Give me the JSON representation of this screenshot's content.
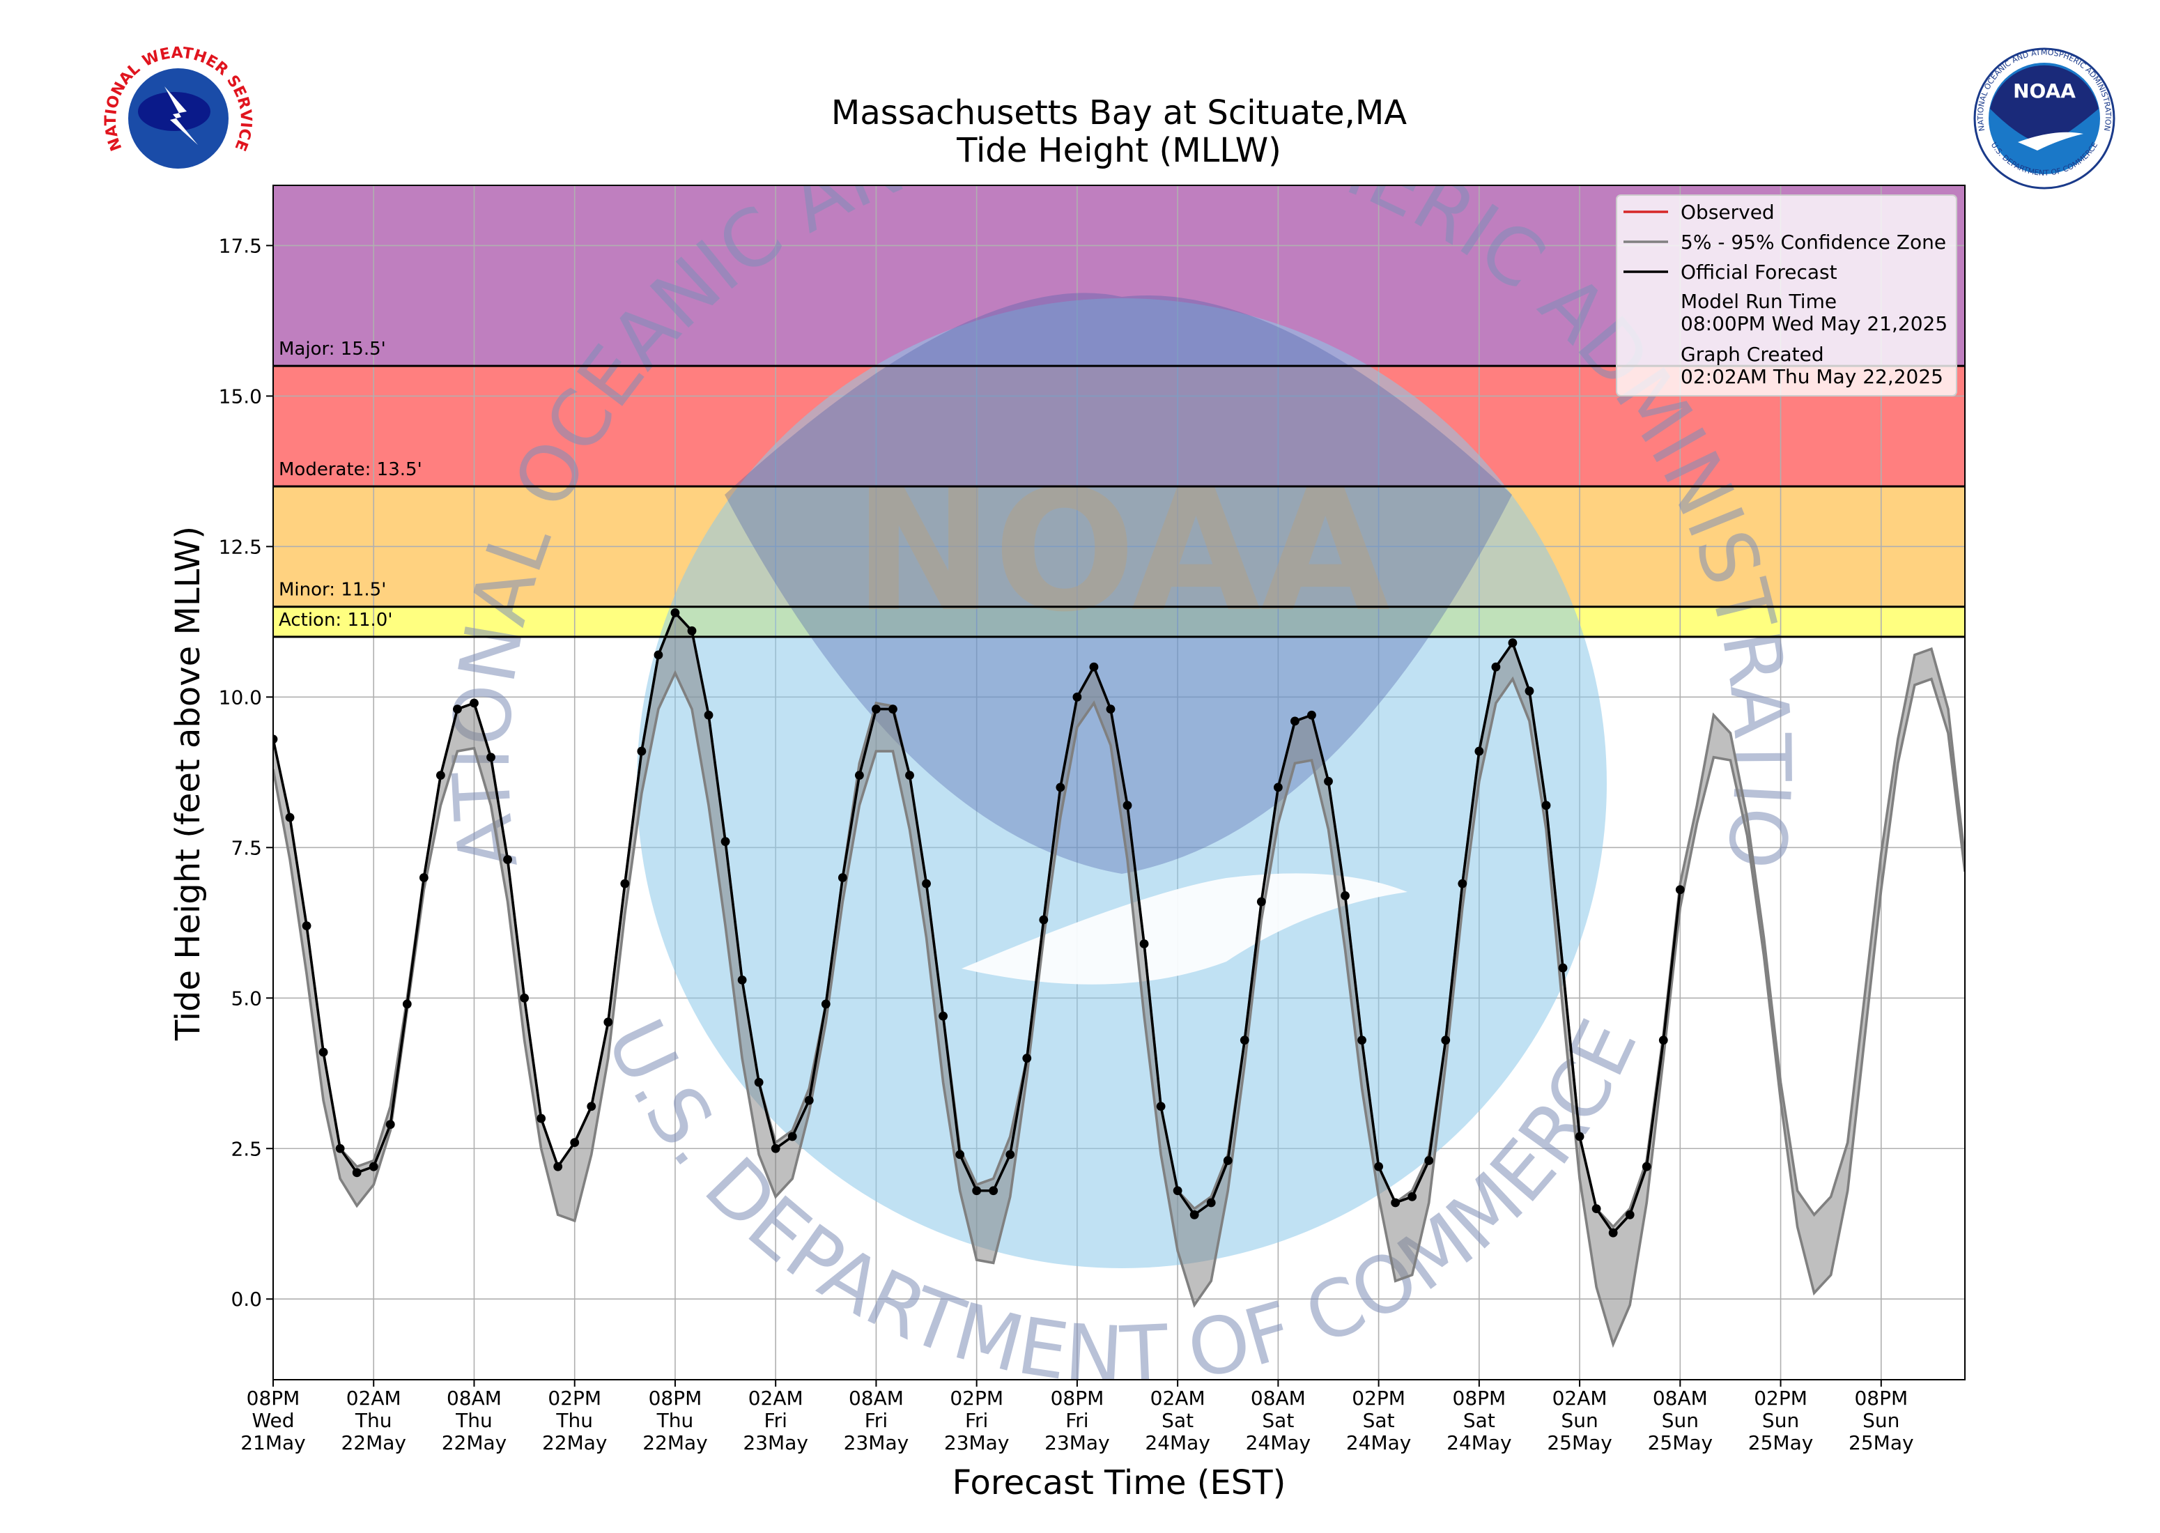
{
  "chart_data": {
    "type": "tide",
    "title": "Massachusetts Bay at Scituate,MA",
    "subtitle": "Tide Height (MLLW)",
    "x_label": "Forecast Time (EST)",
    "y_label": "Tide Height (feet above MLLW)",
    "x": [
      "2025-05-21T20:00",
      "2025-05-21T21:00",
      "2025-05-21T22:00",
      "2025-05-21T23:00",
      "2025-05-22T00:00",
      "2025-05-22T01:00",
      "2025-05-22T02:00",
      "2025-05-22T03:00",
      "2025-05-22T04:00",
      "2025-05-22T05:00",
      "2025-05-22T06:00",
      "2025-05-22T07:00",
      "2025-05-22T08:00",
      "2025-05-22T09:00",
      "2025-05-22T10:00",
      "2025-05-22T11:00",
      "2025-05-22T12:00",
      "2025-05-22T13:00",
      "2025-05-22T14:00",
      "2025-05-22T15:00",
      "2025-05-22T16:00",
      "2025-05-22T17:00",
      "2025-05-22T18:00",
      "2025-05-22T19:00",
      "2025-05-22T20:00",
      "2025-05-22T21:00",
      "2025-05-22T22:00",
      "2025-05-22T23:00",
      "2025-05-23T00:00",
      "2025-05-23T01:00",
      "2025-05-23T02:00",
      "2025-05-23T03:00",
      "2025-05-23T04:00",
      "2025-05-23T05:00",
      "2025-05-23T06:00",
      "2025-05-23T07:00",
      "2025-05-23T08:00",
      "2025-05-23T09:00",
      "2025-05-23T10:00",
      "2025-05-23T11:00",
      "2025-05-23T12:00",
      "2025-05-23T13:00",
      "2025-05-23T14:00",
      "2025-05-23T15:00",
      "2025-05-23T16:00",
      "2025-05-23T17:00",
      "2025-05-23T18:00",
      "2025-05-23T19:00",
      "2025-05-23T20:00",
      "2025-05-23T21:00",
      "2025-05-23T22:00",
      "2025-05-23T23:00",
      "2025-05-24T00:00",
      "2025-05-24T01:00",
      "2025-05-24T02:00",
      "2025-05-24T03:00",
      "2025-05-24T04:00",
      "2025-05-24T05:00",
      "2025-05-24T06:00",
      "2025-05-24T07:00",
      "2025-05-24T08:00",
      "2025-05-24T09:00",
      "2025-05-24T10:00",
      "2025-05-24T11:00",
      "2025-05-24T12:00",
      "2025-05-24T13:00",
      "2025-05-24T14:00",
      "2025-05-24T15:00",
      "2025-05-24T16:00",
      "2025-05-24T17:00",
      "2025-05-24T18:00",
      "2025-05-24T19:00",
      "2025-05-24T20:00",
      "2025-05-24T21:00",
      "2025-05-24T22:00",
      "2025-05-24T23:00",
      "2025-05-25T00:00",
      "2025-05-25T01:00",
      "2025-05-25T02:00",
      "2025-05-25T03:00",
      "2025-05-25T04:00",
      "2025-05-25T05:00",
      "2025-05-25T06:00",
      "2025-05-25T07:00",
      "2025-05-25T08:00",
      "2025-05-25T09:00",
      "2025-05-25T10:00",
      "2025-05-25T11:00",
      "2025-05-25T12:00",
      "2025-05-25T13:00",
      "2025-05-25T14:00",
      "2025-05-25T15:00",
      "2025-05-25T16:00",
      "2025-05-25T17:00",
      "2025-05-25T18:00",
      "2025-05-25T19:00",
      "2025-05-25T20:00",
      "2025-05-25T21:00",
      "2025-05-25T22:00",
      "2025-05-25T23:00",
      "2025-05-26T00:00",
      "2025-05-26T01:00"
    ],
    "series": [
      {
        "name": "Observed",
        "color": "#d62728",
        "values": [
          null,
          null,
          null,
          null,
          null,
          null,
          null,
          null,
          null,
          null,
          null,
          null,
          null,
          null,
          null,
          null,
          null,
          null,
          null,
          null,
          null,
          null,
          null,
          null,
          null,
          null,
          null,
          null,
          null,
          null,
          null,
          null,
          null,
          null,
          null,
          null,
          null,
          null,
          null,
          null,
          null,
          null,
          null,
          null,
          null,
          null,
          null,
          null,
          null,
          null,
          null,
          null,
          null,
          null,
          null,
          null,
          null,
          null,
          null,
          null,
          null,
          null,
          null,
          null,
          null,
          null,
          null,
          null,
          null,
          null,
          null,
          null,
          null,
          null,
          null,
          null,
          null,
          null,
          null,
          null,
          null,
          null,
          null,
          null,
          null,
          null,
          null,
          null,
          null,
          null,
          null,
          null,
          null,
          null,
          null,
          null,
          null,
          null,
          null,
          null,
          null,
          null
        ]
      },
      {
        "name": "5% - 95% Confidence Zone",
        "color": "#808080",
        "lower": [
          8.8,
          7.3,
          5.4,
          3.3,
          2.0,
          1.55,
          1.9,
          2.8,
          4.8,
          6.8,
          8.2,
          9.1,
          9.15,
          8.2,
          6.6,
          4.3,
          2.5,
          1.4,
          1.3,
          2.4,
          4.0,
          6.4,
          8.4,
          9.8,
          10.4,
          9.8,
          8.2,
          6.2,
          4.0,
          2.4,
          1.7,
          2.0,
          3.1,
          4.6,
          6.6,
          8.2,
          9.1,
          9.1,
          7.8,
          6.0,
          3.6,
          1.8,
          0.65,
          0.6,
          1.7,
          3.7,
          6.0,
          8.0,
          9.5,
          9.9,
          9.2,
          7.3,
          4.7,
          2.4,
          0.8,
          -0.1,
          0.3,
          1.8,
          3.9,
          6.3,
          7.9,
          8.9,
          8.95,
          7.8,
          5.8,
          3.5,
          1.7,
          0.3,
          0.4,
          1.6,
          3.9,
          6.5,
          8.6,
          9.9,
          10.3,
          9.6,
          7.8,
          4.8,
          2.0,
          0.2,
          -0.75,
          -0.1,
          1.6,
          4.0,
          6.5,
          7.9,
          9.0,
          8.95,
          7.7,
          5.7,
          3.3,
          1.2,
          0.1,
          0.4,
          1.8,
          4.3,
          6.8,
          8.9,
          10.2,
          10.3,
          9.4,
          7.1
        ],
        "upper": [
          9.3,
          8.0,
          6.2,
          4.1,
          2.5,
          2.2,
          2.3,
          3.2,
          5.0,
          7.0,
          8.7,
          9.8,
          9.9,
          9.0,
          7.3,
          5.0,
          3.0,
          2.2,
          2.6,
          3.2,
          4.6,
          6.9,
          9.1,
          10.7,
          11.4,
          11.1,
          9.7,
          7.6,
          5.3,
          3.6,
          2.6,
          2.8,
          3.5,
          4.9,
          7.0,
          8.9,
          9.9,
          9.85,
          8.7,
          6.9,
          4.7,
          2.5,
          1.9,
          2.0,
          2.7,
          4.0,
          6.3,
          8.5,
          10.0,
          10.5,
          9.8,
          8.2,
          5.9,
          3.2,
          1.8,
          1.5,
          1.7,
          2.4,
          4.3,
          6.6,
          8.5,
          9.6,
          9.7,
          8.6,
          6.7,
          4.3,
          2.2,
          1.6,
          1.8,
          2.4,
          4.3,
          6.9,
          9.1,
          10.5,
          10.9,
          10.1,
          8.2,
          5.5,
          2.7,
          1.5,
          1.2,
          1.5,
          2.3,
          4.4,
          6.9,
          8.2,
          9.7,
          9.4,
          8.0,
          6.0,
          3.6,
          1.8,
          1.4,
          1.7,
          2.6,
          5.0,
          7.4,
          9.3,
          10.7,
          10.8,
          9.8,
          7.3
        ]
      },
      {
        "name": "Official Forecast",
        "color": "#000000",
        "values": [
          9.3,
          8.0,
          6.2,
          4.1,
          2.5,
          2.1,
          2.2,
          2.9,
          4.9,
          7.0,
          8.7,
          9.8,
          9.9,
          9.0,
          7.3,
          5.0,
          3.0,
          2.2,
          2.6,
          3.2,
          4.6,
          6.9,
          9.1,
          10.7,
          11.4,
          11.1,
          9.7,
          7.6,
          5.3,
          3.6,
          2.5,
          2.7,
          3.3,
          4.9,
          7.0,
          8.7,
          9.8,
          9.8,
          8.7,
          6.9,
          4.7,
          2.4,
          1.8,
          1.8,
          2.4,
          4.0,
          6.3,
          8.5,
          10.0,
          10.5,
          9.8,
          8.2,
          5.9,
          3.2,
          1.8,
          1.4,
          1.6,
          2.3,
          4.3,
          6.6,
          8.5,
          9.6,
          9.7,
          8.6,
          6.7,
          4.3,
          2.2,
          1.6,
          1.7,
          2.3,
          4.3,
          6.9,
          9.1,
          10.5,
          10.9,
          10.1,
          8.2,
          5.5,
          2.7,
          1.5,
          1.1,
          1.4,
          2.2,
          4.3,
          6.8,
          null,
          null,
          null,
          null,
          null,
          null,
          null,
          null,
          null,
          null,
          null,
          null,
          null,
          null,
          null,
          null,
          null
        ]
      }
    ],
    "thresholds": [
      {
        "label": "Action: 11.0'",
        "value": 11.0,
        "color": "#ffff80"
      },
      {
        "label": "Minor: 11.5'",
        "value": 11.5,
        "color": "#ffd280"
      },
      {
        "label": "Moderate: 13.5'",
        "value": 13.5,
        "color": "#ff7f7f"
      },
      {
        "label": "Major: 15.5'",
        "value": 15.5,
        "color": "#bf7fbf"
      }
    ],
    "model_run_time": {
      "label": "Model Run Time",
      "value": "08:00PM Wed May 21,2025"
    },
    "graph_created": {
      "label": "Graph Created",
      "value": "02:02AM Thu May 22,2025"
    },
    "xlim": [
      "2025-05-21T20:00",
      "2025-05-26T01:00"
    ],
    "ylim": [
      -1.34,
      18.5
    ],
    "yticks": [
      {
        "value": 0,
        "label": "0.0"
      },
      2.5,
      {
        "value": 5,
        "label": "5.0"
      },
      7.5,
      {
        "value": 10,
        "label": "10.0"
      },
      12.5,
      {
        "value": 15,
        "label": "15.0"
      },
      17.5
    ],
    "xticks": [
      {
        "value": "2025-05-21T20:00",
        "label": "08PM\nWed\n21May"
      },
      {
        "value": "2025-05-22T02:00",
        "label": "02AM\nThu\n22May"
      },
      {
        "value": "2025-05-22T08:00",
        "label": "08AM\nThu\n22May"
      },
      {
        "value": "2025-05-22T14:00",
        "label": "02PM\nThu\n22May"
      },
      {
        "value": "2025-05-22T20:00",
        "label": "08PM\nThu\n22May"
      },
      {
        "value": "2025-05-23T02:00",
        "label": "02AM\nFri\n23May"
      },
      {
        "value": "2025-05-23T08:00",
        "label": "08AM\nFri\n23May"
      },
      {
        "value": "2025-05-23T14:00",
        "label": "02PM\nFri\n23May"
      },
      {
        "value": "2025-05-23T20:00",
        "label": "08PM\nFri\n23May"
      },
      {
        "value": "2025-05-24T02:00",
        "label": "02AM\nSat\n24May"
      },
      {
        "value": "2025-05-24T08:00",
        "label": "08AM\nSat\n24May"
      },
      {
        "value": "2025-05-24T14:00",
        "label": "02PM\nSat\n24May"
      },
      {
        "value": "2025-05-24T20:00",
        "label": "08PM\nSat\n24May"
      },
      {
        "value": "2025-05-25T02:00",
        "label": "02AM\nSun\n25May"
      },
      {
        "value": "2025-05-25T08:00",
        "label": "08AM\nSun\n25May"
      },
      {
        "value": "2025-05-25T14:00",
        "label": "02PM\nSun\n25May"
      },
      {
        "value": "2025-05-25T20:00",
        "label": "08PM\nSun\n25May"
      }
    ],
    "grid": true,
    "legend": "upper right"
  },
  "watermark": {
    "top": "NATIONAL OCEANIC AND ATMOSPHERIC ADMINISTRATION",
    "bottom": "U.S. DEPARTMENT OF COMMERCE",
    "center": "NOAA"
  },
  "logos": {
    "nws": "NATIONAL WEATHER SERVICE",
    "noaa": "NOAA",
    "noaa_ring": "NATIONAL OCEANIC AND ATMOSPHERIC ADMINISTRATION",
    "noaa_bottom": "U.S. DEPARTMENT OF COMMERCE"
  }
}
